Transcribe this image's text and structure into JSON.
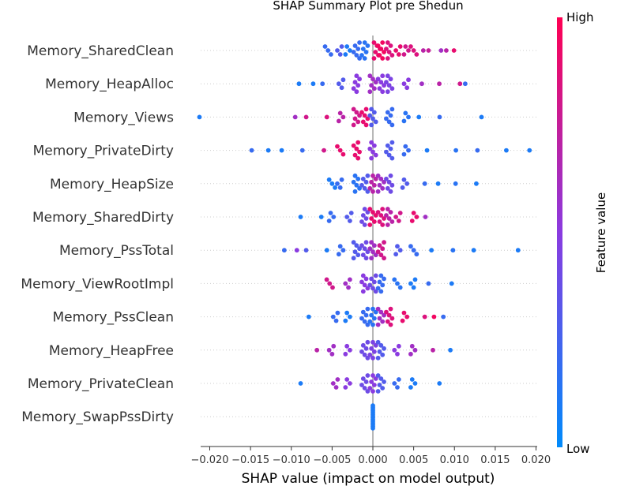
{
  "chart_data": {
    "type": "scatter",
    "subtype": "shap-beeswarm",
    "title": "SHAP Summary Plot pre Shedun",
    "xlabel": "SHAP value (impact on model output)",
    "xlim": [
      -0.0235,
      0.0215
    ],
    "x_ticks": [
      -0.02,
      -0.015,
      -0.01,
      -0.005,
      0.0,
      0.005,
      0.01,
      0.015,
      0.02
    ],
    "x_tick_labels": [
      "−0.020",
      "−0.015",
      "−0.010",
      "−0.005",
      "0.000",
      "0.005",
      "0.010",
      "0.015",
      "0.020"
    ],
    "zero_line": true,
    "colorbar": {
      "label": "Feature value",
      "high_label": "High",
      "low_label": "Low",
      "high_color": "#ff0052",
      "low_color": "#008bfb"
    },
    "features": [
      {
        "name": "Memory_SharedClean",
        "points": [
          {
            "x": -0.0055,
            "c": 0.2
          },
          {
            "x": -0.004,
            "c": 0.3
          },
          {
            "x": -0.003,
            "c": 0.1
          },
          {
            "x": -0.002,
            "c": 0.2
          },
          {
            "x": -0.001,
            "c": 0.15
          },
          {
            "x": 0.0005,
            "c": 0.9
          },
          {
            "x": 0.001,
            "c": 0.95
          },
          {
            "x": 0.002,
            "c": 0.85
          },
          {
            "x": 0.003,
            "c": 0.9
          },
          {
            "x": 0.004,
            "c": 0.8
          },
          {
            "x": 0.005,
            "c": 0.85
          },
          {
            "x": 0.006,
            "c": 0.7
          },
          {
            "x": 0.007,
            "c": 0.75
          },
          {
            "x": 0.008,
            "c": 0.6
          },
          {
            "x": 0.009,
            "c": 0.7
          },
          {
            "x": 0.0103,
            "c": 0.9
          }
        ]
      },
      {
        "name": "Memory_HeapAlloc",
        "points": [
          {
            "x": -0.0087,
            "c": 0.1
          },
          {
            "x": -0.0075,
            "c": 0.1
          },
          {
            "x": -0.006,
            "c": 0.2
          },
          {
            "x": -0.004,
            "c": 0.3
          },
          {
            "x": -0.002,
            "c": 0.5
          },
          {
            "x": 0.0,
            "c": 0.6
          },
          {
            "x": 0.001,
            "c": 0.5
          },
          {
            "x": 0.002,
            "c": 0.45
          },
          {
            "x": 0.004,
            "c": 0.5
          },
          {
            "x": 0.006,
            "c": 0.6
          },
          {
            "x": 0.0085,
            "c": 0.7
          },
          {
            "x": 0.0105,
            "c": 0.8
          },
          {
            "x": 0.0115,
            "c": 0.2
          }
        ]
      },
      {
        "name": "Memory_Views",
        "points": [
          {
            "x": -0.0209,
            "c": 0.1
          },
          {
            "x": -0.0097,
            "c": 0.6
          },
          {
            "x": -0.008,
            "c": 0.8
          },
          {
            "x": -0.006,
            "c": 0.85
          },
          {
            "x": -0.004,
            "c": 0.7
          },
          {
            "x": -0.002,
            "c": 0.8
          },
          {
            "x": -0.001,
            "c": 0.9
          },
          {
            "x": 0.0,
            "c": 0.3
          },
          {
            "x": 0.002,
            "c": 0.2
          },
          {
            "x": 0.004,
            "c": 0.15
          },
          {
            "x": 0.006,
            "c": 0.1
          },
          {
            "x": 0.008,
            "c": 0.2
          },
          {
            "x": 0.0135,
            "c": 0.1
          }
        ]
      },
      {
        "name": "Memory_PrivateDirty",
        "points": [
          {
            "x": -0.0145,
            "c": 0.2
          },
          {
            "x": -0.013,
            "c": 0.1
          },
          {
            "x": -0.011,
            "c": 0.1
          },
          {
            "x": -0.009,
            "c": 0.2
          },
          {
            "x": -0.006,
            "c": 0.8
          },
          {
            "x": -0.004,
            "c": 0.9
          },
          {
            "x": -0.002,
            "c": 0.9
          },
          {
            "x": 0.0,
            "c": 0.5
          },
          {
            "x": 0.002,
            "c": 0.3
          },
          {
            "x": 0.004,
            "c": 0.2
          },
          {
            "x": 0.007,
            "c": 0.1
          },
          {
            "x": 0.01,
            "c": 0.15
          },
          {
            "x": 0.013,
            "c": 0.2
          },
          {
            "x": 0.016,
            "c": 0.1
          },
          {
            "x": 0.0192,
            "c": 0.1
          }
        ]
      },
      {
        "name": "Memory_HeapSize",
        "points": [
          {
            "x": -0.005,
            "c": 0.1
          },
          {
            "x": -0.004,
            "c": 0.2
          },
          {
            "x": -0.002,
            "c": 0.15
          },
          {
            "x": -0.001,
            "c": 0.3
          },
          {
            "x": 0.0,
            "c": 0.7
          },
          {
            "x": 0.001,
            "c": 0.6
          },
          {
            "x": 0.002,
            "c": 0.4
          },
          {
            "x": 0.004,
            "c": 0.3
          },
          {
            "x": 0.006,
            "c": 0.2
          },
          {
            "x": 0.008,
            "c": 0.1
          },
          {
            "x": 0.0105,
            "c": 0.15
          },
          {
            "x": 0.0125,
            "c": 0.1
          }
        ]
      },
      {
        "name": "Memory_SharedDirty",
        "points": [
          {
            "x": -0.0085,
            "c": 0.1
          },
          {
            "x": -0.0065,
            "c": 0.1
          },
          {
            "x": -0.005,
            "c": 0.2
          },
          {
            "x": -0.003,
            "c": 0.3
          },
          {
            "x": -0.001,
            "c": 0.4
          },
          {
            "x": 0.0,
            "c": 0.9
          },
          {
            "x": 0.001,
            "c": 0.85
          },
          {
            "x": 0.002,
            "c": 0.7
          },
          {
            "x": 0.003,
            "c": 0.8
          },
          {
            "x": 0.005,
            "c": 0.9
          },
          {
            "x": 0.0068,
            "c": 0.6
          }
        ]
      },
      {
        "name": "Memory_PssTotal",
        "points": [
          {
            "x": -0.0105,
            "c": 0.2
          },
          {
            "x": -0.0095,
            "c": 0.5
          },
          {
            "x": -0.008,
            "c": 0.3
          },
          {
            "x": -0.006,
            "c": 0.1
          },
          {
            "x": -0.004,
            "c": 0.2
          },
          {
            "x": -0.002,
            "c": 0.3
          },
          {
            "x": -0.001,
            "c": 0.4
          },
          {
            "x": 0.0,
            "c": 0.6
          },
          {
            "x": 0.001,
            "c": 0.8
          },
          {
            "x": 0.003,
            "c": 0.3
          },
          {
            "x": 0.005,
            "c": 0.2
          },
          {
            "x": 0.007,
            "c": 0.1
          },
          {
            "x": 0.01,
            "c": 0.15
          },
          {
            "x": 0.012,
            "c": 0.1
          },
          {
            "x": 0.0178,
            "c": 0.1
          }
        ]
      },
      {
        "name": "Memory_ViewRootImpl",
        "points": [
          {
            "x": -0.0053,
            "c": 0.8
          },
          {
            "x": -0.003,
            "c": 0.6
          },
          {
            "x": -0.001,
            "c": 0.5
          },
          {
            "x": 0.0,
            "c": 0.4
          },
          {
            "x": 0.001,
            "c": 0.2
          },
          {
            "x": 0.003,
            "c": 0.15
          },
          {
            "x": 0.005,
            "c": 0.1
          },
          {
            "x": 0.007,
            "c": 0.2
          },
          {
            "x": 0.0093,
            "c": 0.1
          }
        ]
      },
      {
        "name": "Memory_PssClean",
        "points": [
          {
            "x": -0.0075,
            "c": 0.1
          },
          {
            "x": -0.0045,
            "c": 0.2
          },
          {
            "x": -0.003,
            "c": 0.1
          },
          {
            "x": -0.001,
            "c": 0.2
          },
          {
            "x": 0.0,
            "c": 0.15
          },
          {
            "x": 0.001,
            "c": 0.6
          },
          {
            "x": 0.002,
            "c": 0.85
          },
          {
            "x": 0.004,
            "c": 0.9
          },
          {
            "x": 0.006,
            "c": 0.85
          },
          {
            "x": 0.0075,
            "c": 0.95
          },
          {
            "x": 0.009,
            "c": 0.2
          }
        ]
      },
      {
        "name": "Memory_HeapFree",
        "points": [
          {
            "x": -0.0065,
            "c": 0.7
          },
          {
            "x": -0.005,
            "c": 0.6
          },
          {
            "x": -0.003,
            "c": 0.5
          },
          {
            "x": -0.001,
            "c": 0.4
          },
          {
            "x": 0.0,
            "c": 0.45
          },
          {
            "x": 0.001,
            "c": 0.3
          },
          {
            "x": 0.003,
            "c": 0.5
          },
          {
            "x": 0.005,
            "c": 0.6
          },
          {
            "x": 0.007,
            "c": 0.7
          },
          {
            "x": 0.0095,
            "c": 0.1
          }
        ]
      },
      {
        "name": "Memory_PrivateClean",
        "points": [
          {
            "x": -0.0085,
            "c": 0.1
          },
          {
            "x": -0.0045,
            "c": 0.6
          },
          {
            "x": -0.003,
            "c": 0.5
          },
          {
            "x": -0.001,
            "c": 0.4
          },
          {
            "x": 0.0,
            "c": 0.5
          },
          {
            "x": 0.001,
            "c": 0.3
          },
          {
            "x": 0.003,
            "c": 0.2
          },
          {
            "x": 0.005,
            "c": 0.1
          },
          {
            "x": 0.0078,
            "c": 0.1
          }
        ]
      },
      {
        "name": "Memory_SwapPssDirty",
        "points": [
          {
            "x": 0.0,
            "c": 0.1
          }
        ]
      }
    ]
  }
}
